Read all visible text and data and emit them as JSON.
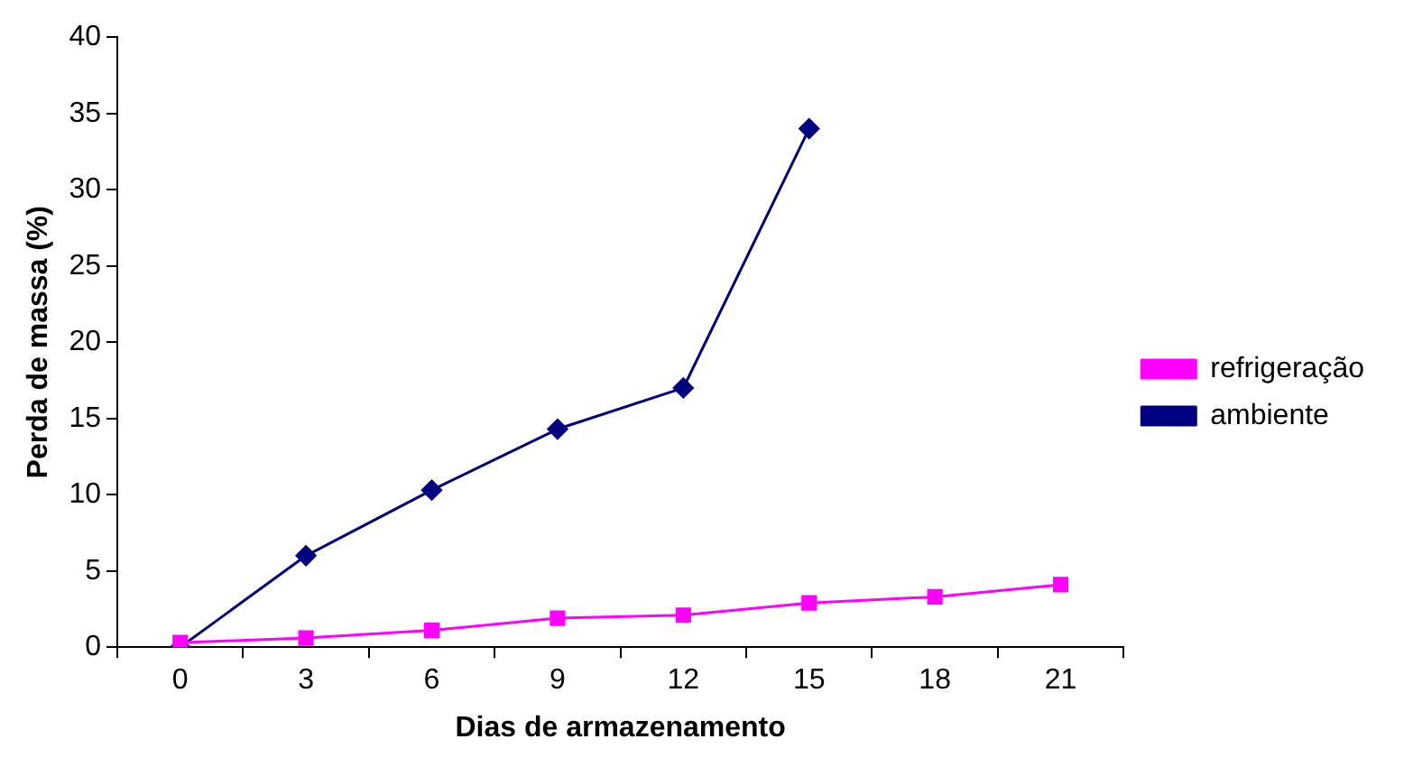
{
  "chart_data": {
    "type": "line",
    "xlabel": "Dias de armazenamento",
    "ylabel": "Perda de massa (%)",
    "categories": [
      "0",
      "3",
      "6",
      "9",
      "12",
      "15",
      "18",
      "21"
    ],
    "series": [
      {
        "name": "ambiente",
        "color": "#000080",
        "marker": "diamond",
        "values": [
          0,
          6,
          10.3,
          14.3,
          17,
          34,
          null,
          null
        ]
      },
      {
        "name": "refrigeração",
        "color": "#ff00ff",
        "marker": "square",
        "values": [
          0.3,
          0.6,
          1.1,
          1.9,
          2.1,
          2.9,
          3.3,
          4.1
        ]
      }
    ],
    "ylim": [
      0,
      40
    ],
    "yticks": [
      0,
      5,
      10,
      15,
      20,
      25,
      30,
      35,
      40
    ],
    "grid": false,
    "legend": "right"
  }
}
